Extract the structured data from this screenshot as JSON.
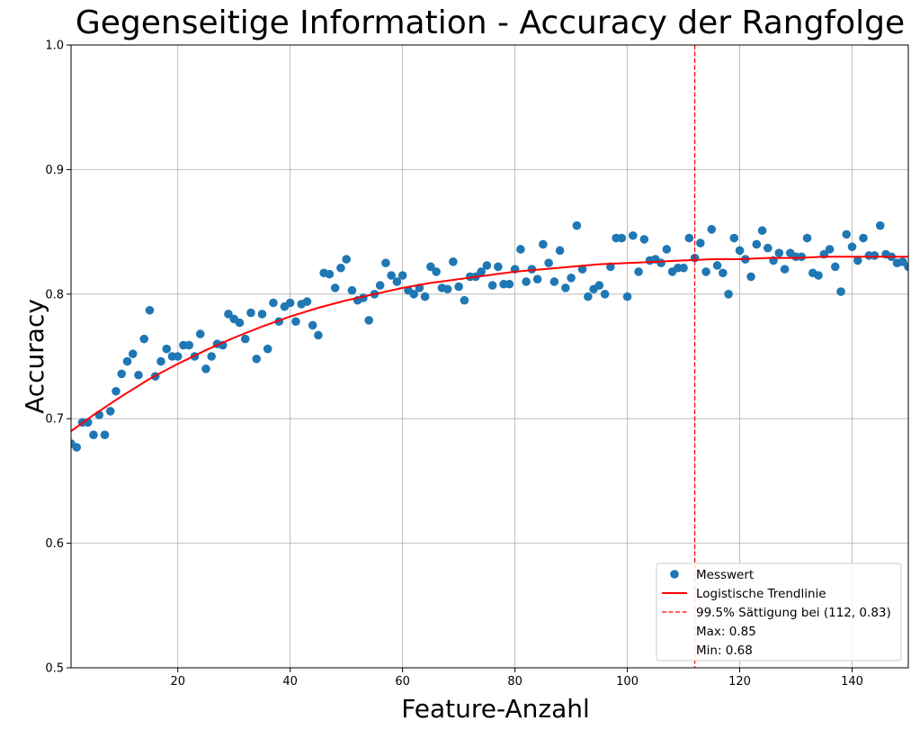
{
  "chart_data": {
    "type": "scatter",
    "title": "Gegenseitige Information - Accuracy der Rangfolge",
    "xlabel": "Feature-Anzahl",
    "ylabel": "Accuracy",
    "xlim": [
      1,
      150
    ],
    "ylim": [
      0.5,
      1.0
    ],
    "xticks": [
      20,
      40,
      60,
      80,
      100,
      120,
      140
    ],
    "yticks": [
      0.5,
      0.6,
      0.7,
      0.8,
      0.9,
      1.0
    ],
    "grid": true,
    "legend_position": "lower right",
    "colors": {
      "points": "#1f77b4",
      "trend": "#ff0000",
      "saturation": "#ff0000"
    },
    "series": [
      {
        "name": "Messwert",
        "kind": "scatter",
        "x": [
          1,
          2,
          3,
          4,
          5,
          6,
          7,
          8,
          9,
          10,
          11,
          12,
          13,
          14,
          15,
          16,
          17,
          18,
          19,
          20,
          21,
          22,
          23,
          24,
          25,
          26,
          27,
          28,
          29,
          30,
          31,
          32,
          33,
          34,
          35,
          36,
          37,
          38,
          39,
          40,
          41,
          42,
          43,
          44,
          45,
          46,
          47,
          48,
          49,
          50,
          51,
          52,
          53,
          54,
          55,
          56,
          57,
          58,
          59,
          60,
          61,
          62,
          63,
          64,
          65,
          66,
          67,
          68,
          69,
          70,
          71,
          72,
          73,
          74,
          75,
          76,
          77,
          78,
          79,
          80,
          81,
          82,
          83,
          84,
          85,
          86,
          87,
          88,
          89,
          90,
          91,
          92,
          93,
          94,
          95,
          96,
          97,
          98,
          99,
          100,
          101,
          102,
          103,
          104,
          105,
          106,
          107,
          108,
          109,
          110,
          111,
          112,
          113,
          114,
          115,
          116,
          117,
          118,
          119,
          120,
          121,
          122,
          123,
          124,
          125,
          126,
          127,
          128,
          129,
          130,
          131,
          132,
          133,
          134,
          135,
          136,
          137,
          138,
          139,
          140,
          141,
          142,
          143,
          144,
          145,
          146,
          147,
          148,
          149,
          150
        ],
        "y": [
          0.68,
          0.677,
          0.697,
          0.697,
          0.687,
          0.703,
          0.687,
          0.706,
          0.722,
          0.736,
          0.746,
          0.752,
          0.735,
          0.764,
          0.787,
          0.734,
          0.746,
          0.756,
          0.75,
          0.75,
          0.759,
          0.759,
          0.75,
          0.768,
          0.74,
          0.75,
          0.76,
          0.759,
          0.784,
          0.78,
          0.777,
          0.764,
          0.785,
          0.748,
          0.784,
          0.756,
          0.793,
          0.778,
          0.79,
          0.793,
          0.778,
          0.792,
          0.794,
          0.775,
          0.767,
          0.817,
          0.816,
          0.805,
          0.821,
          0.828,
          0.803,
          0.795,
          0.797,
          0.779,
          0.8,
          0.807,
          0.825,
          0.815,
          0.81,
          0.815,
          0.803,
          0.8,
          0.805,
          0.798,
          0.822,
          0.818,
          0.805,
          0.804,
          0.826,
          0.806,
          0.795,
          0.814,
          0.814,
          0.818,
          0.823,
          0.807,
          0.822,
          0.808,
          0.808,
          0.82,
          0.836,
          0.81,
          0.82,
          0.812,
          0.84,
          0.825,
          0.81,
          0.835,
          0.805,
          0.813,
          0.855,
          0.82,
          0.798,
          0.804,
          0.807,
          0.8,
          0.822,
          0.845,
          0.845,
          0.798,
          0.847,
          0.818,
          0.844,
          0.827,
          0.828,
          0.825,
          0.836,
          0.818,
          0.821,
          0.821,
          0.845,
          0.829,
          0.841,
          0.818,
          0.852,
          0.823,
          0.817,
          0.8,
          0.845,
          0.835,
          0.828,
          0.814,
          0.84,
          0.851,
          0.837,
          0.827,
          0.833,
          0.82,
          0.833,
          0.83,
          0.83,
          0.845,
          0.817,
          0.815,
          0.832,
          0.836,
          0.822,
          0.802,
          0.848,
          0.838,
          0.827,
          0.845,
          0.831,
          0.831,
          0.855,
          0.832,
          0.83,
          0.825,
          0.826,
          0.822
        ]
      },
      {
        "name": "Logistische Trendlinie",
        "kind": "line",
        "x": [
          1,
          5,
          10,
          15,
          20,
          25,
          30,
          35,
          40,
          45,
          50,
          55,
          60,
          65,
          70,
          75,
          80,
          85,
          90,
          95,
          100,
          105,
          110,
          115,
          120,
          125,
          130,
          135,
          140,
          145,
          150
        ],
        "y": [
          0.69,
          0.703,
          0.718,
          0.732,
          0.744,
          0.755,
          0.765,
          0.774,
          0.782,
          0.789,
          0.795,
          0.8,
          0.805,
          0.809,
          0.812,
          0.815,
          0.818,
          0.82,
          0.822,
          0.824,
          0.825,
          0.826,
          0.827,
          0.828,
          0.828,
          0.829,
          0.829,
          0.83,
          0.83,
          0.83,
          0.83
        ]
      },
      {
        "name": "99.5% Sättigung bei (112, 0.83)",
        "kind": "vline",
        "x": 112
      }
    ],
    "legend": [
      {
        "label": "Messwert",
        "marker": "dot"
      },
      {
        "label": "Logistische Trendlinie",
        "marker": "line"
      },
      {
        "label": "99.5% Sättigung bei (112, 0.83)",
        "marker": "dashed"
      },
      {
        "label": "Max: 0.85",
        "marker": "none"
      },
      {
        "label": "Min: 0.68",
        "marker": "none"
      }
    ]
  }
}
